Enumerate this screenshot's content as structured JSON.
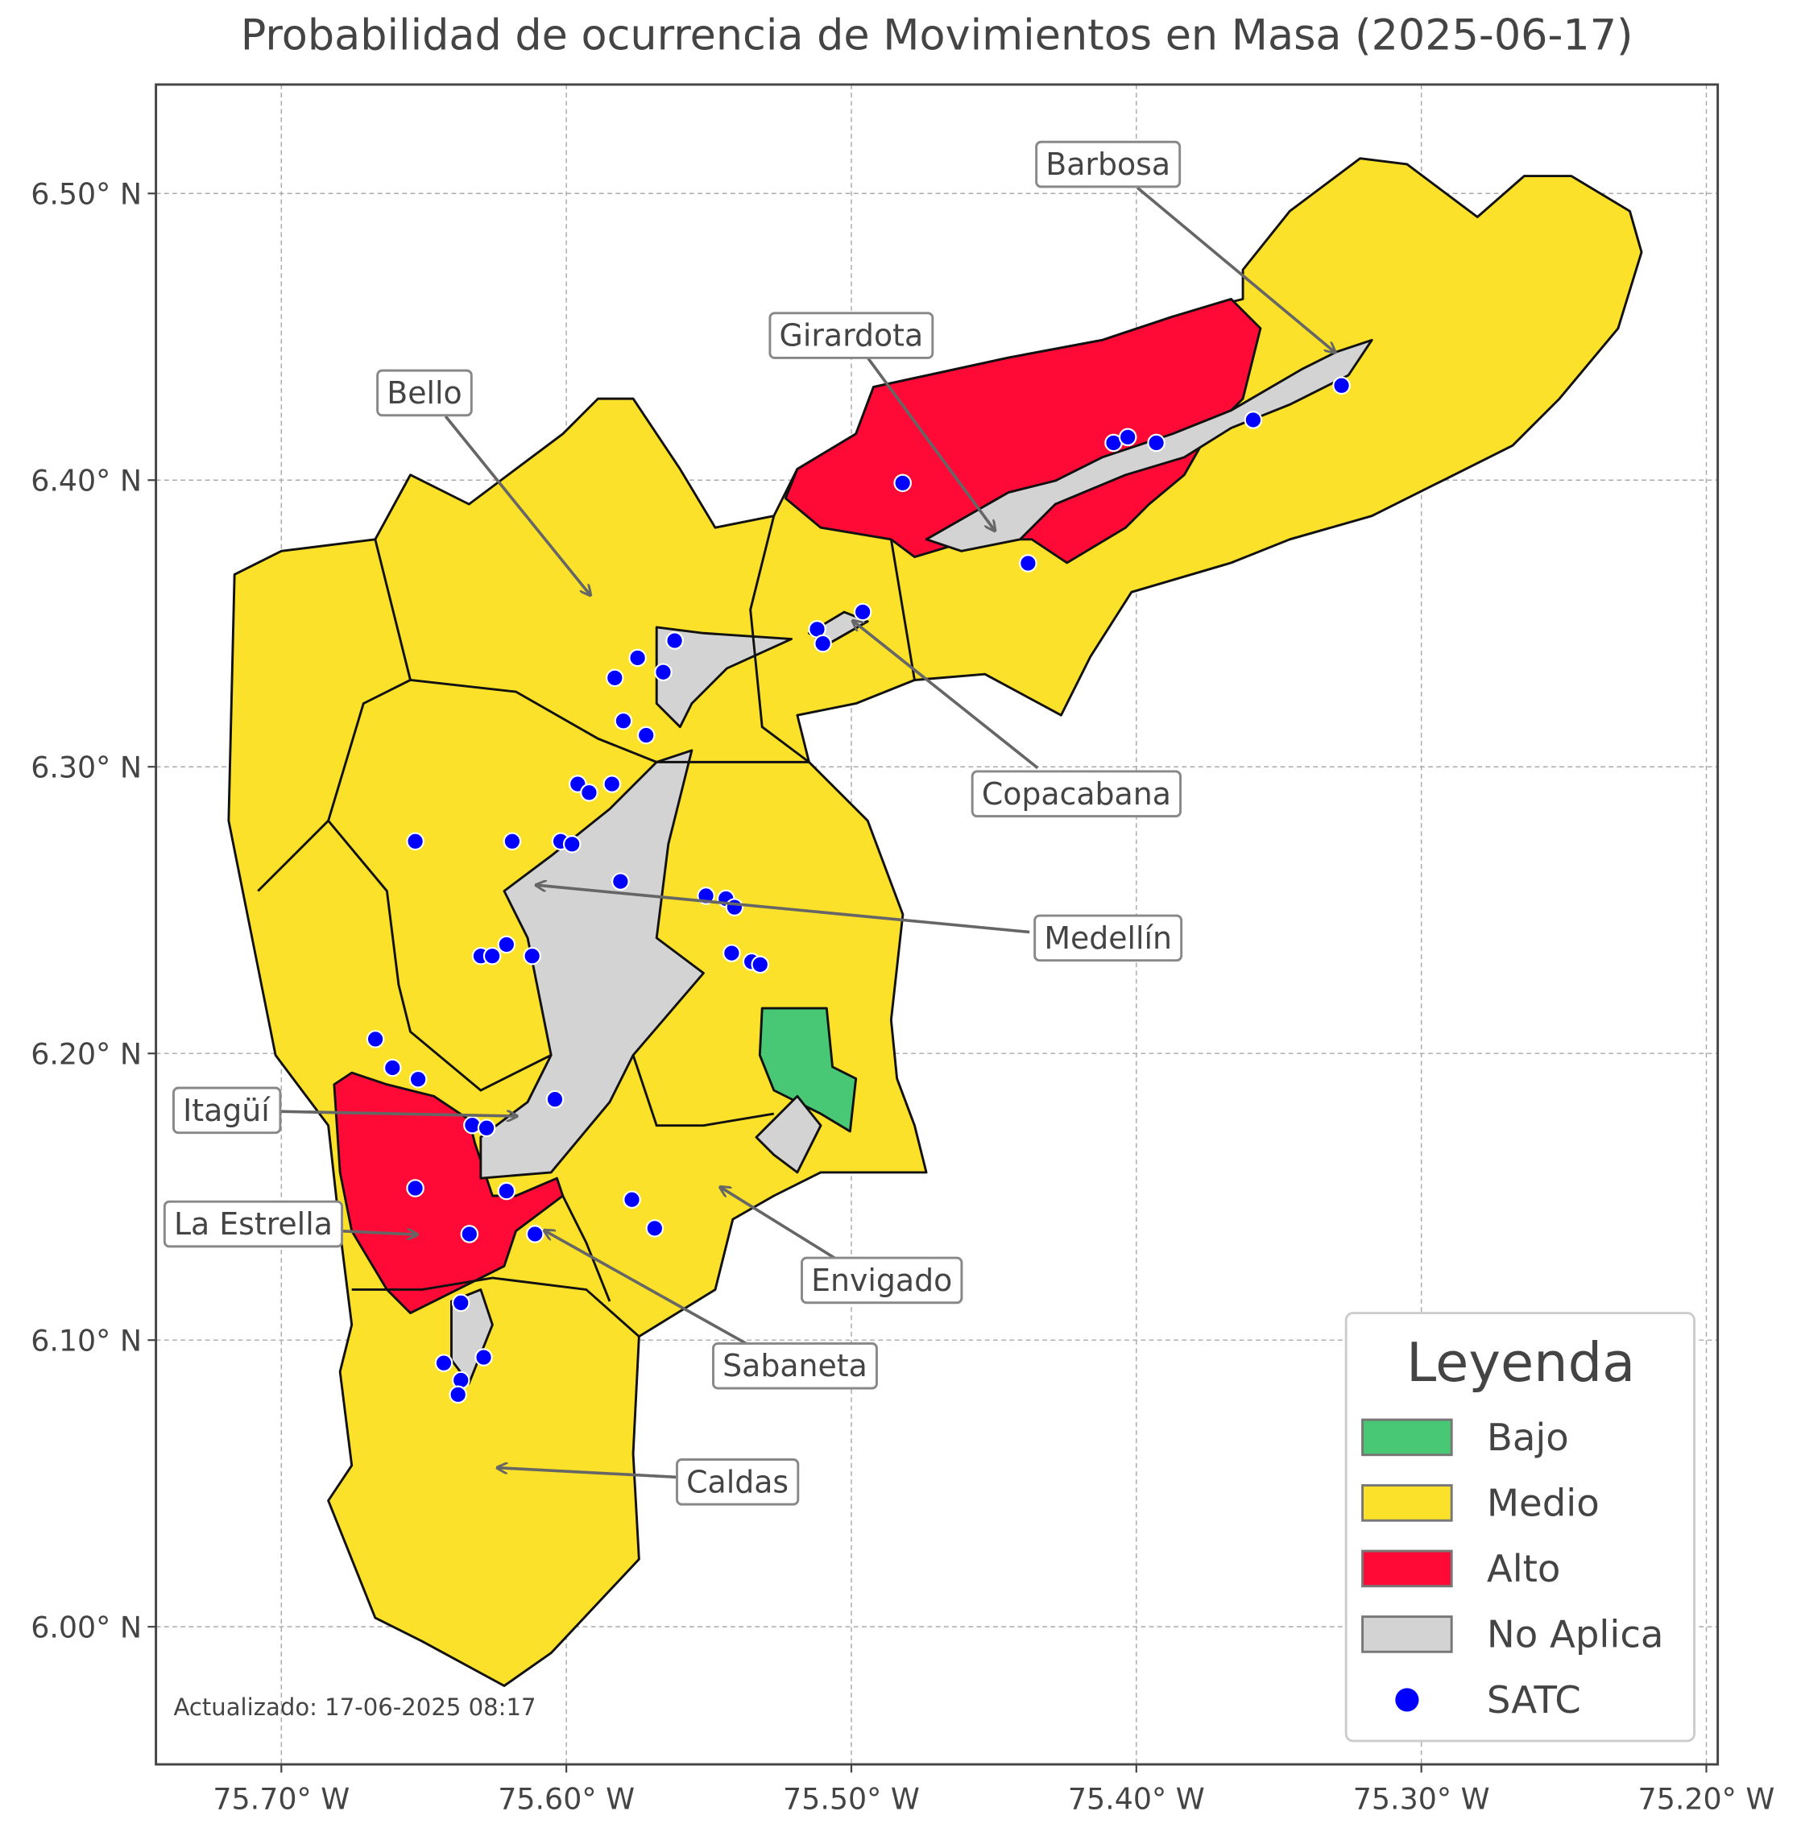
{
  "chart_data": {
    "type": "map",
    "title": "Probabilidad de ocurrencia de Movimientos en Masa (2025-06-17)",
    "xlim": [
      -75.744,
      -75.196
    ],
    "ylim": [
      5.952,
      6.538
    ],
    "xticks": [
      {
        "value": -75.7,
        "label": "75.70° W"
      },
      {
        "value": -75.6,
        "label": "75.60° W"
      },
      {
        "value": -75.5,
        "label": "75.50° W"
      },
      {
        "value": -75.4,
        "label": "75.40° W"
      },
      {
        "value": -75.3,
        "label": "75.30° W"
      },
      {
        "value": -75.2,
        "label": "75.20° W"
      }
    ],
    "yticks": [
      {
        "value": 6.0,
        "label": "6.00° N"
      },
      {
        "value": 6.1,
        "label": "6.10° N"
      },
      {
        "value": 6.2,
        "label": "6.20° N"
      },
      {
        "value": 6.3,
        "label": "6.30° N"
      },
      {
        "value": 6.4,
        "label": "6.40° N"
      },
      {
        "value": 6.5,
        "label": "6.50° N"
      }
    ],
    "grid": true,
    "points": {
      "name": "SATC",
      "color": "#0000ff",
      "lon": [
        -75.482,
        -75.408,
        -75.403,
        -75.393,
        -75.359,
        -75.328,
        -75.438,
        -75.496,
        -75.512,
        -75.51,
        -75.562,
        -75.575,
        -75.583,
        -75.566,
        -75.58,
        -75.572,
        -75.596,
        -75.592,
        -75.584,
        -75.619,
        -75.602,
        -75.598,
        -75.581,
        -75.653,
        -75.551,
        -75.544,
        -75.541,
        -75.63,
        -75.626,
        -75.621,
        -75.612,
        -75.542,
        -75.535,
        -75.532,
        -75.667,
        -75.661,
        -75.652,
        -75.604,
        -75.633,
        -75.628,
        -75.653,
        -75.621,
        -75.634,
        -75.611,
        -75.577,
        -75.569,
        -75.637,
        -75.643,
        -75.629,
        -75.637,
        -75.638
      ],
      "lat": [
        6.399,
        6.413,
        6.415,
        6.413,
        6.421,
        6.433,
        6.371,
        6.354,
        6.348,
        6.343,
        6.344,
        6.338,
        6.331,
        6.333,
        6.316,
        6.311,
        6.294,
        6.291,
        6.294,
        6.274,
        6.274,
        6.273,
        6.26,
        6.274,
        6.255,
        6.254,
        6.251,
        6.234,
        6.234,
        6.238,
        6.234,
        6.235,
        6.232,
        6.231,
        6.205,
        6.195,
        6.191,
        6.184,
        6.175,
        6.174,
        6.153,
        6.152,
        6.137,
        6.137,
        6.149,
        6.139,
        6.113,
        6.092,
        6.094,
        6.086,
        6.081
      ]
    },
    "legend": {
      "title": "Leyenda",
      "entries": [
        {
          "name": "Bajo",
          "color": "#48c774"
        },
        {
          "name": "Medio",
          "color": "#fbe12a"
        },
        {
          "name": "Alto",
          "color": "#ff0a37"
        },
        {
          "name": "No Aplica",
          "color": "#d3d3d3"
        }
      ]
    },
    "annotations": [
      "Barbosa",
      "Girardota",
      "Bello",
      "Copacabana",
      "Medellín",
      "Itagüí",
      "La Estrella",
      "Envigado",
      "Sabaneta",
      "Caldas"
    ],
    "footer": "Actualizado: 17-06-2025 08:17"
  }
}
